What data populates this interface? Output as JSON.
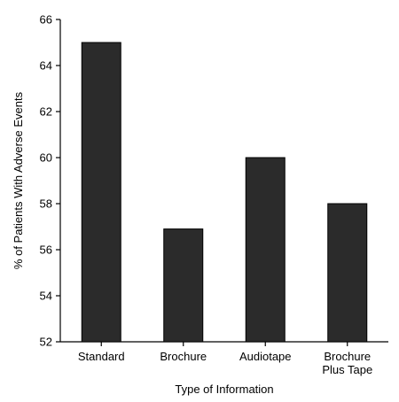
{
  "chart_data": {
    "type": "bar",
    "categories": [
      [
        "Standard"
      ],
      [
        "Brochure"
      ],
      [
        "Audiotape"
      ],
      [
        "Brochure",
        "Plus Tape"
      ]
    ],
    "values": [
      65,
      56.9,
      60,
      58
    ],
    "xlabel": "Type of Information",
    "ylabel": "% of Patients With Adverse Events",
    "ylim": [
      52,
      66
    ],
    "yticks": [
      52,
      54,
      56,
      58,
      60,
      62,
      64,
      66
    ],
    "grid": false,
    "bar_color": "#2b2b2b"
  }
}
